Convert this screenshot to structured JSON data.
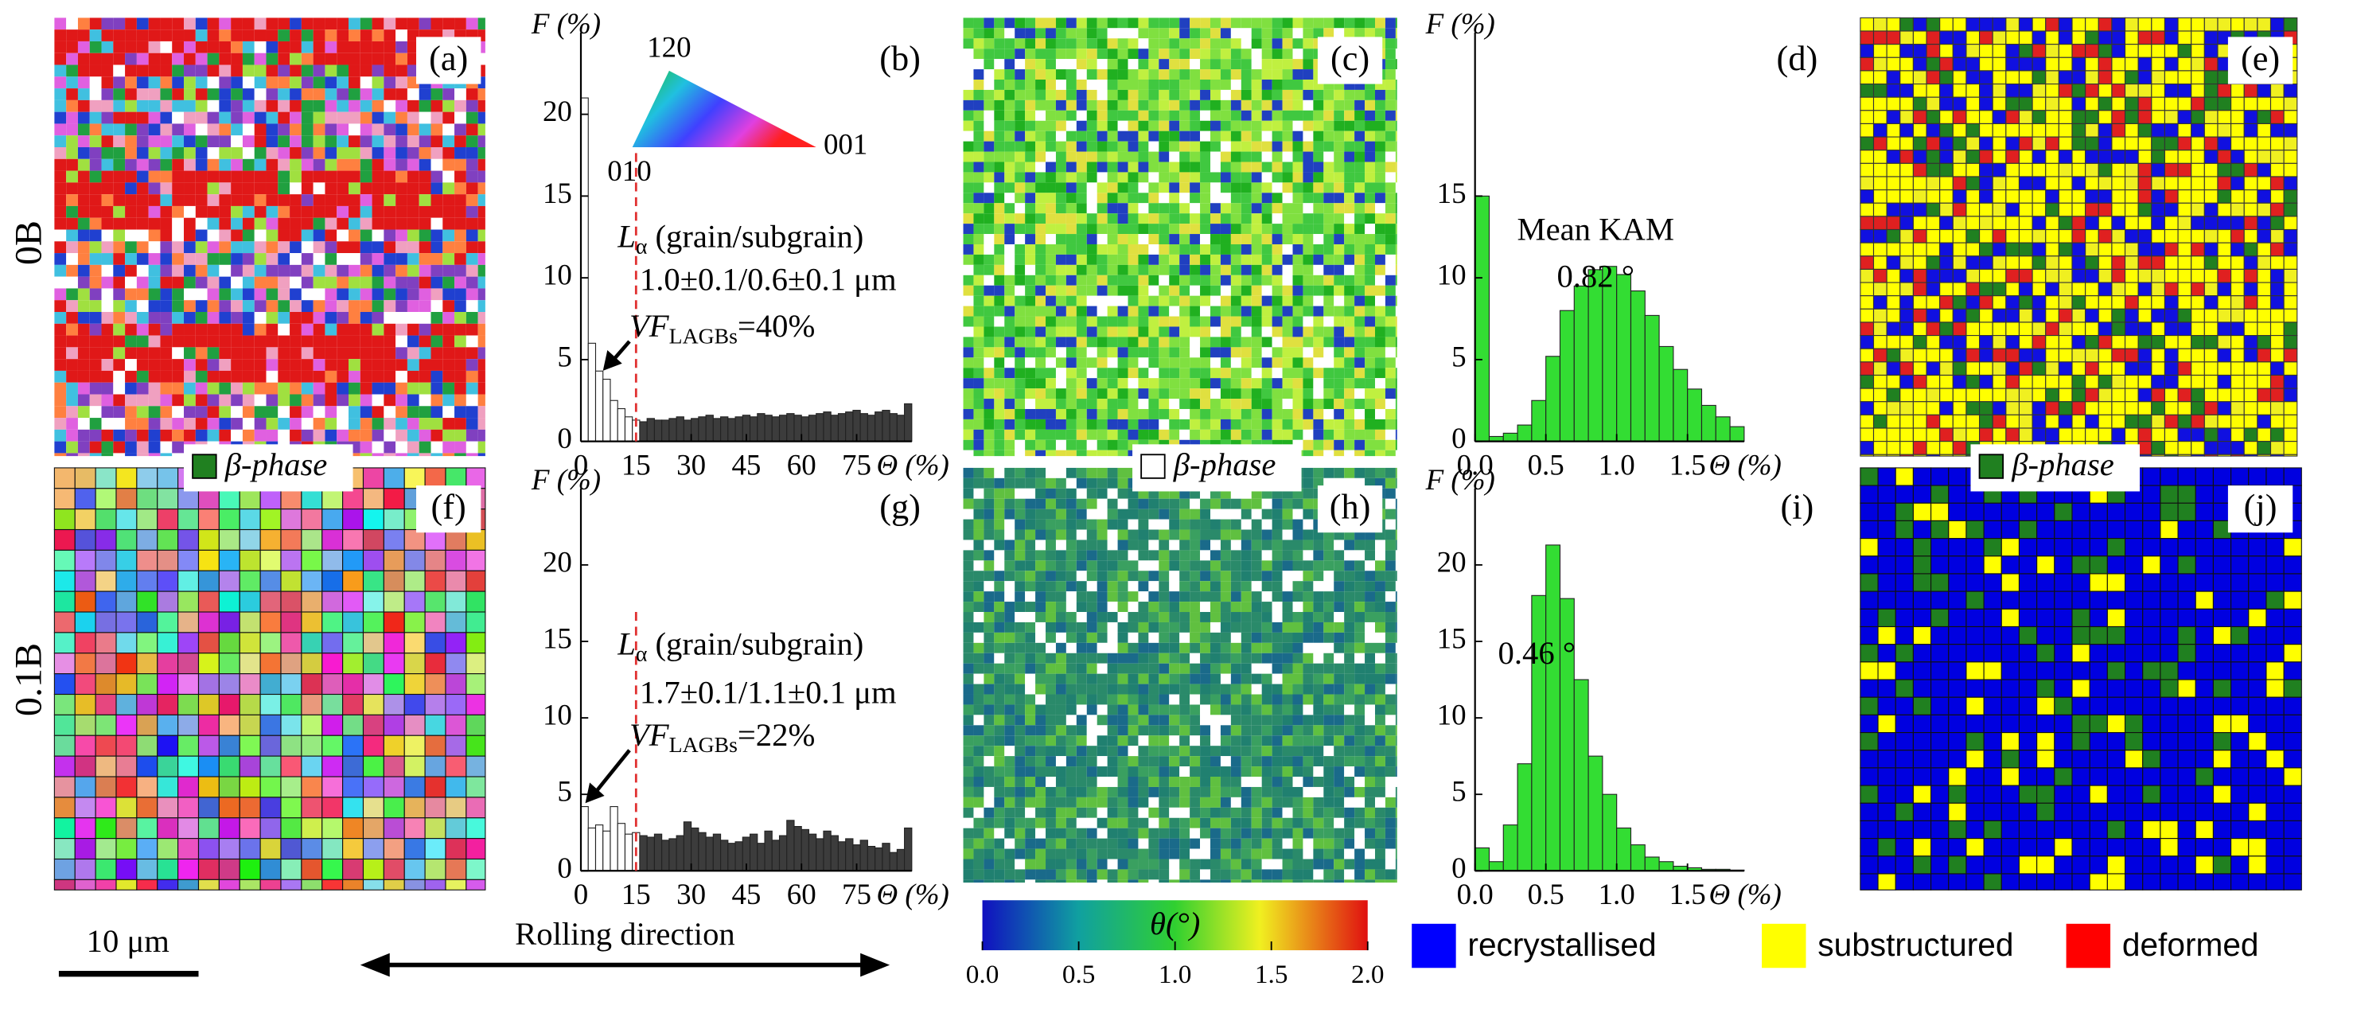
{
  "row_labels": [
    "0B",
    "0.1B"
  ],
  "panel_labels": [
    "(a)",
    "(b)",
    "(c)",
    "(d)",
    "(e)",
    "(f)",
    "(g)",
    "(h)",
    "(i)",
    "(j)"
  ],
  "beta_phase_legends": [
    "β-phase",
    "β-phase",
    "β-phase"
  ],
  "ipf_labels": {
    "top": "120",
    "left": "010",
    "right": "001"
  },
  "scale_bar": "10 μm",
  "rolling_direction": "Rolling direction",
  "colorbar": {
    "label": "θ(°)",
    "lim": [
      0,
      2
    ],
    "ticks": [
      {
        "value": 0,
        "label": "0.0"
      },
      0.5,
      {
        "value": 1,
        "label": "1.0"
      },
      1.5,
      {
        "value": 2,
        "label": "2.0"
      }
    ]
  },
  "map_legend": [
    {
      "name": "recrystallised",
      "color": "#0000ff"
    },
    {
      "name": "substructured",
      "color": "#ffff00"
    },
    {
      "name": "deformed",
      "color": "#ff0000"
    }
  ],
  "chart_data": [
    {
      "type": "histogram",
      "ylabel": "F (%)",
      "xlabel": "Θ (%)",
      "bins": [
        0,
        2,
        4,
        6,
        8,
        10,
        12,
        14,
        16,
        18,
        20,
        22,
        24,
        26,
        28,
        30,
        32,
        34,
        36,
        38,
        40,
        42,
        44,
        46,
        48,
        50,
        52,
        54,
        56,
        58,
        60,
        62,
        64,
        66,
        68,
        70,
        72,
        74,
        76,
        78,
        80,
        82,
        84,
        86,
        88,
        90
      ],
      "counts": [
        21,
        6,
        4.3,
        3.8,
        2.5,
        2.0,
        1.5,
        1.3,
        1.2,
        1.4,
        1.3,
        1.3,
        1.4,
        1.5,
        1.3,
        1.4,
        1.5,
        1.6,
        1.4,
        1.5,
        1.4,
        1.5,
        1.6,
        1.5,
        1.7,
        1.6,
        1.5,
        1.6,
        1.7,
        1.6,
        1.5,
        1.6,
        1.7,
        1.8,
        1.6,
        1.7,
        1.8,
        1.9,
        1.7,
        1.6,
        1.8,
        1.9,
        1.7,
        1.6,
        2.3
      ],
      "color": "#3c3c3c",
      "color_below_threshold": "#ffffff",
      "threshold": 15,
      "threshold_color": "#e03030",
      "xlim": [
        0,
        90
      ],
      "ylim": [
        0,
        25
      ],
      "xticks": [
        0,
        15,
        30,
        45,
        60,
        75
      ],
      "yticks": [
        0,
        5,
        10,
        15,
        20
      ],
      "length_label": {
        "main": "L",
        "sub": "α",
        "rest": " (grain/subgrain)"
      },
      "length_value": "1.0±0.1/0.6±0.1 μm",
      "vf_label": {
        "main": "VF",
        "sub": "LAGBs",
        "rest": "=40%"
      }
    },
    {
      "type": "histogram",
      "ylabel": "F (%)",
      "xlabel": "Θ (%)",
      "bins": [
        0,
        0.1,
        0.2,
        0.3,
        0.4,
        0.5,
        0.6,
        0.7,
        0.8,
        0.9,
        1.0,
        1.1,
        1.2,
        1.3,
        1.4,
        1.5,
        1.6,
        1.7,
        1.8,
        1.9
      ],
      "counts": [
        15,
        0.3,
        0.5,
        1,
        2.5,
        5.2,
        8,
        9.5,
        10.5,
        10.7,
        10.2,
        9.2,
        7.7,
        5.8,
        4.4,
        3.2,
        2.2,
        1.5,
        0.9
      ],
      "color": "#33dd33",
      "xlim": [
        0,
        1.9
      ],
      "ylim": [
        0,
        25
      ],
      "xticks": [
        {
          "value": 0,
          "label": "0.0"
        },
        0.5,
        {
          "value": 1,
          "label": "1.0"
        },
        1.5
      ],
      "yticks": [
        0,
        5,
        10,
        15
      ],
      "annotation_title": "Mean KAM",
      "mean_label": "0.82 °"
    },
    {
      "type": "histogram",
      "ylabel": "F (%)",
      "xlabel": "Θ (%)",
      "bins": [
        0,
        2,
        4,
        6,
        8,
        10,
        12,
        14,
        16,
        18,
        20,
        22,
        24,
        26,
        28,
        30,
        32,
        34,
        36,
        38,
        40,
        42,
        44,
        46,
        48,
        50,
        52,
        54,
        56,
        58,
        60,
        62,
        64,
        66,
        68,
        70,
        72,
        74,
        76,
        78,
        80,
        82,
        84,
        86,
        88,
        90
      ],
      "counts": [
        4.2,
        2.8,
        3.0,
        2.6,
        4.2,
        3.1,
        2.4,
        2.5,
        2.3,
        2.2,
        2.4,
        2.0,
        2.1,
        2.3,
        3.2,
        2.8,
        2.5,
        2.2,
        2.4,
        2.0,
        1.8,
        1.9,
        2.2,
        2.4,
        1.8,
        2.6,
        2.0,
        2.3,
        3.3,
        2.9,
        2.7,
        2.4,
        2.1,
        2.6,
        2.3,
        1.9,
        2.1,
        1.7,
        2.0,
        1.6,
        1.5,
        1.8,
        1.2,
        1.4,
        2.8
      ],
      "color": "#3c3c3c",
      "color_below_threshold": "#ffffff",
      "threshold": 15,
      "threshold_color": "#e03030",
      "xlim": [
        0,
        90
      ],
      "ylim": [
        0,
        25
      ],
      "xticks": [
        0,
        15,
        30,
        45,
        60,
        75
      ],
      "yticks": [
        0,
        5,
        10,
        15,
        20
      ],
      "length_label": {
        "main": "L",
        "sub": "α",
        "rest": " (grain/subgrain)"
      },
      "length_value": "1.7±0.1/1.1±0.1 μm",
      "vf_label": {
        "main": "VF",
        "sub": "LAGBs",
        "rest": "=22%"
      }
    },
    {
      "type": "histogram",
      "ylabel": "F (%)",
      "xlabel": "Θ (%)",
      "bins": [
        0,
        0.1,
        0.2,
        0.3,
        0.4,
        0.5,
        0.6,
        0.7,
        0.8,
        0.9,
        1.0,
        1.1,
        1.2,
        1.3,
        1.4,
        1.5,
        1.6,
        1.7,
        1.8,
        1.9
      ],
      "counts": [
        1.5,
        0.6,
        3.0,
        7,
        18,
        21.3,
        17.8,
        12.5,
        7.5,
        5,
        2.8,
        1.7,
        0.9,
        0.6,
        0.3,
        0.2,
        0.1,
        0.1,
        0.05
      ],
      "color": "#33dd33",
      "xlim": [
        0,
        1.9
      ],
      "ylim": [
        0,
        25
      ],
      "xticks": [
        {
          "value": 0,
          "label": "0.0"
        },
        0.5,
        {
          "value": 1,
          "label": "1.0"
        },
        1.5
      ],
      "yticks": [
        0,
        5,
        10,
        15,
        20
      ],
      "mean_label": "0.46 °"
    }
  ]
}
